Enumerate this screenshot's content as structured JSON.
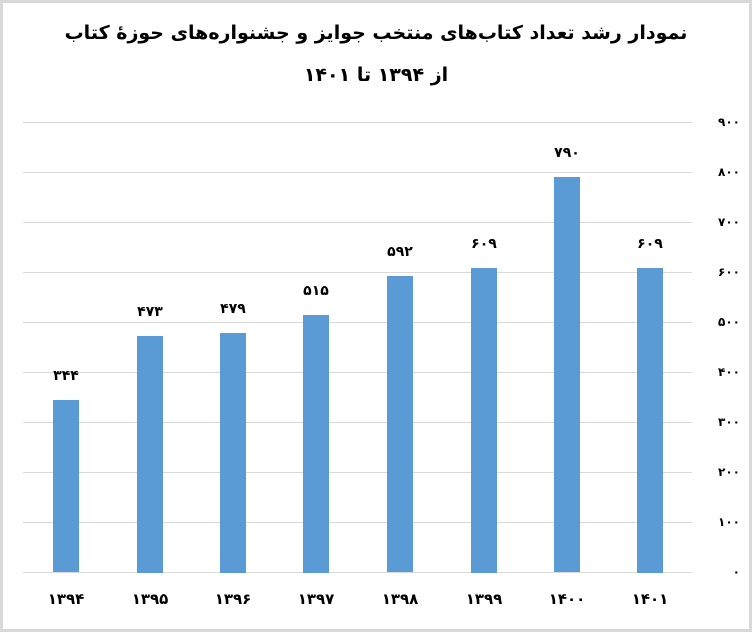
{
  "title": {
    "line1": "نمودار رشد تعداد کتاب‌های منتخب جوایز و جشنواره‌های حوزهٔ کتاب",
    "line2": "از ۱۳۹۴ تا ۱۴۰۱"
  },
  "colors": {
    "bar": "#5b9bd5",
    "grid": "#d9d9d9",
    "border": "#d9d9d9"
  },
  "y_ticks": [
    "۰",
    "۱۰۰",
    "۲۰۰",
    "۳۰۰",
    "۴۰۰",
    "۵۰۰",
    "۶۰۰",
    "۷۰۰",
    "۸۰۰",
    "۹۰۰"
  ],
  "x_ticks": [
    "۱۳۹۴",
    "۱۳۹۵",
    "۱۳۹۶",
    "۱۳۹۷",
    "۱۳۹۸",
    "۱۳۹۹",
    "۱۴۰۰",
    "۱۴۰۱"
  ],
  "data_labels": [
    "۳۴۴",
    "۴۷۳",
    "۴۷۹",
    "۵۱۵",
    "۵۹۲",
    "۶۰۹",
    "۷۹۰",
    "۶۰۹"
  ],
  "chart_data": {
    "type": "bar",
    "title": "نمودار رشد تعداد کتاب‌های منتخب جوایز و جشنواره‌های حوزهٔ کتاب از ۱۳۹۴ تا ۱۴۰۱",
    "categories": [
      "1394",
      "1395",
      "1396",
      "1397",
      "1398",
      "1399",
      "1400",
      "1401"
    ],
    "values": [
      344,
      473,
      479,
      515,
      592,
      609,
      790,
      609
    ],
    "xlabel": "",
    "ylabel": "",
    "ylim": [
      0,
      900
    ],
    "y_tick_step": 100,
    "grid": true,
    "legend": null,
    "y_axis_position": "right",
    "data_labels_shown": true
  }
}
